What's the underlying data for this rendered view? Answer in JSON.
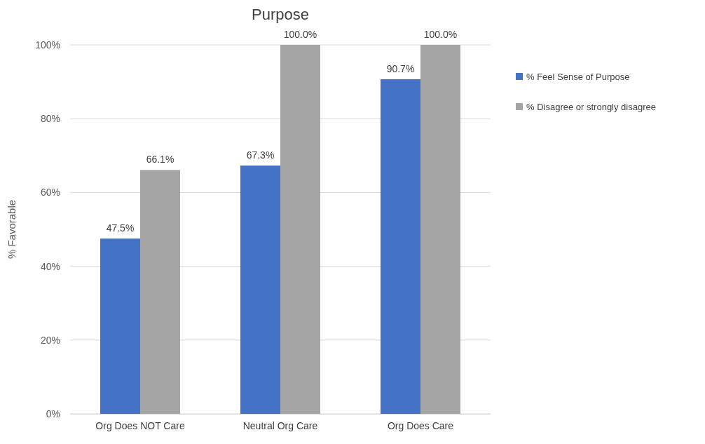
{
  "chart_data": {
    "type": "bar",
    "title": "Purpose",
    "ylabel": "% Favorable",
    "categories": [
      "Org Does NOT Care",
      "Neutral Org Care",
      "Org Does Care"
    ],
    "series": [
      {
        "name": "% Feel Sense of Purpose",
        "color": "#4472c4",
        "values": [
          47.5,
          67.3,
          90.7
        ],
        "value_labels": [
          "47.5%",
          "67.3%",
          "90.7%"
        ]
      },
      {
        "name": "% Disagree or strongly disagree",
        "color": "#a5a5a5",
        "values": [
          66.1,
          100.0,
          100.0
        ],
        "value_labels": [
          "66.1%",
          "100.0%",
          "100.0%"
        ]
      }
    ],
    "ylim": [
      0,
      100
    ],
    "yticks": [
      {
        "value": 0,
        "label": "0%"
      },
      {
        "value": 20,
        "label": "20%"
      },
      {
        "value": 40,
        "label": "40%"
      },
      {
        "value": 60,
        "label": "60%"
      },
      {
        "value": 80,
        "label": "80%"
      },
      {
        "value": 100,
        "label": "100%"
      }
    ],
    "grid": "y",
    "legend": "right"
  }
}
